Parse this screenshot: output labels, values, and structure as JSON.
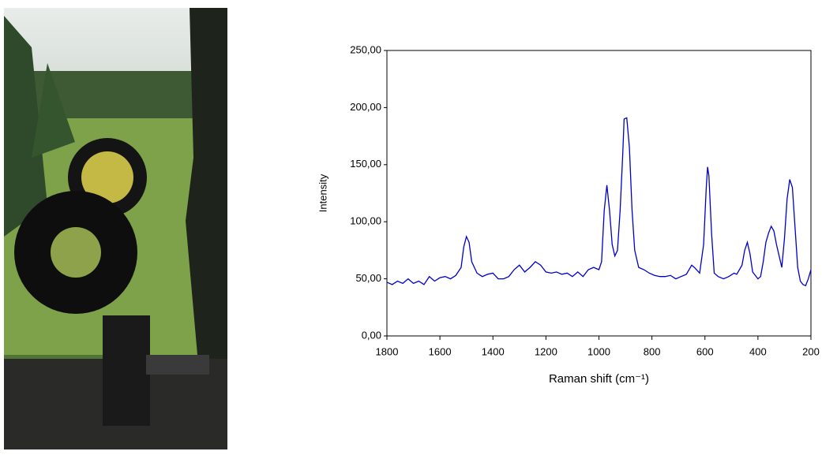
{
  "chart_data": {
    "type": "line",
    "xlabel": "Raman shift (cm⁻¹)",
    "ylabel": "Intensity",
    "xlim": [
      1800,
      200
    ],
    "ylim": [
      0,
      250
    ],
    "xticks": [
      1800,
      1600,
      1400,
      1200,
      1000,
      800,
      600,
      400,
      200
    ],
    "yticks": [
      {
        "value": 0,
        "label": "0,00"
      },
      {
        "value": 50,
        "label": "50,00"
      },
      {
        "value": 100,
        "label": "100,00"
      },
      {
        "value": 150,
        "label": "150,00"
      },
      {
        "value": 200,
        "label": "200,00"
      },
      {
        "value": 250,
        "label": "250,00"
      }
    ],
    "series": [
      {
        "color": "#0000cc",
        "x": [
          1800,
          1780,
          1760,
          1740,
          1720,
          1700,
          1680,
          1660,
          1640,
          1620,
          1600,
          1580,
          1560,
          1540,
          1520,
          1510,
          1500,
          1490,
          1480,
          1460,
          1440,
          1420,
          1400,
          1380,
          1360,
          1340,
          1320,
          1300,
          1280,
          1260,
          1240,
          1220,
          1200,
          1180,
          1160,
          1140,
          1120,
          1100,
          1080,
          1060,
          1040,
          1020,
          1000,
          990,
          980,
          970,
          960,
          950,
          940,
          930,
          920,
          910,
          905,
          895,
          885,
          875,
          865,
          850,
          830,
          810,
          790,
          770,
          750,
          730,
          710,
          690,
          670,
          650,
          640,
          620,
          605,
          595,
          590,
          585,
          575,
          565,
          550,
          530,
          510,
          490,
          480,
          460,
          450,
          440,
          430,
          420,
          400,
          390,
          380,
          370,
          360,
          350,
          340,
          330,
          320,
          310,
          300,
          290,
          280,
          270,
          260,
          250,
          240,
          230,
          220,
          210,
          200
        ],
        "values": [
          47,
          45,
          48,
          46,
          50,
          46,
          48,
          45,
          52,
          48,
          51,
          52,
          50,
          53,
          60,
          78,
          87,
          82,
          65,
          55,
          52,
          54,
          55,
          50,
          50,
          52,
          58,
          62,
          56,
          60,
          65,
          62,
          56,
          55,
          56,
          54,
          55,
          52,
          56,
          52,
          58,
          60,
          58,
          65,
          110,
          132,
          110,
          80,
          70,
          75,
          110,
          160,
          190,
          191,
          165,
          110,
          75,
          60,
          58,
          55,
          53,
          52,
          52,
          53,
          50,
          52,
          54,
          62,
          60,
          55,
          80,
          130,
          148,
          140,
          90,
          55,
          52,
          50,
          52,
          55,
          54,
          62,
          75,
          82,
          72,
          56,
          50,
          52,
          65,
          82,
          90,
          96,
          92,
          80,
          70,
          60,
          85,
          120,
          137,
          130,
          95,
          60,
          48,
          45,
          44,
          50,
          58
        ]
      }
    ]
  }
}
